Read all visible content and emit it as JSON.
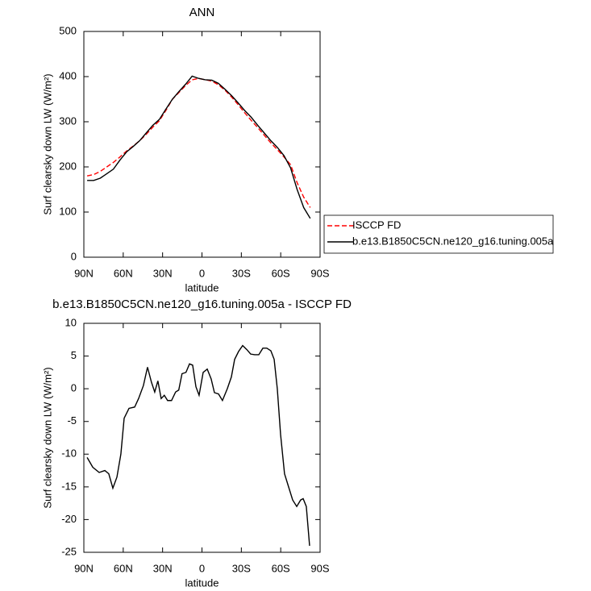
{
  "chart_data": [
    {
      "type": "line",
      "title": "ANN",
      "xlabel": "latitude",
      "ylabel": "Surf clearsky down LW (W/m²)",
      "x": [
        87.5,
        82.5,
        77.5,
        72.5,
        67.5,
        62.5,
        57.5,
        52.5,
        47.5,
        42.5,
        37.5,
        32.5,
        27.5,
        22.5,
        17.5,
        12.5,
        7.5,
        2.5,
        -2.5,
        -7.5,
        -12.5,
        -17.5,
        -22.5,
        -27.5,
        -32.5,
        -37.5,
        -42.5,
        -47.5,
        -52.5,
        -57.5,
        -62.5,
        -67.5,
        -72.5,
        -77.5,
        -82.5
      ],
      "series": [
        {
          "name": "ISCCP FD",
          "color": "#ff0000",
          "dash": true,
          "values": [
            180,
            183,
            190,
            200,
            210,
            222,
            235,
            246,
            258,
            272,
            288,
            302,
            325,
            350,
            365,
            380,
            393,
            396,
            393,
            390,
            382,
            370,
            355,
            338,
            320,
            303,
            287,
            270,
            253,
            238,
            222,
            205,
            165,
            133,
            110
          ]
        },
        {
          "name": "b.e13.B1850C5CN.ne120_g16.tuning.005a",
          "color": "#000000",
          "dash": false,
          "values": [
            170,
            170,
            175,
            185,
            195,
            215,
            233,
            245,
            258,
            275,
            292,
            305,
            328,
            350,
            367,
            383,
            401,
            396,
            393,
            392,
            385,
            372,
            358,
            342,
            325,
            310,
            292,
            275,
            258,
            243,
            225,
            198,
            150,
            110,
            86
          ]
        }
      ],
      "xlim": [
        90,
        -90
      ],
      "xticks": [
        {
          "value": 90,
          "label": "90N"
        },
        {
          "value": 60,
          "label": "60N"
        },
        {
          "value": 30,
          "label": "30N"
        },
        0,
        {
          "value": -30,
          "label": "30S"
        },
        {
          "value": -60,
          "label": "60S"
        },
        {
          "value": -90,
          "label": "90S"
        }
      ],
      "ylim": [
        0,
        500
      ],
      "yticks": [
        0,
        100,
        200,
        300,
        400,
        500
      ],
      "legend": "right"
    },
    {
      "type": "line",
      "title": "b.e13.B1850C5CN.ne120_g16.tuning.005a - ISCCP FD",
      "xlabel": "latitude",
      "ylabel": "Surf clearsky down LW (W/m²)",
      "x": [
        87.5,
        83.2,
        78.3,
        74.0,
        71.0,
        67.9,
        64.8,
        61.8,
        59.3,
        55.6,
        51.3,
        48.3,
        44.6,
        41.5,
        38.5,
        36.0,
        33.6,
        31.1,
        28.7,
        26.2,
        23.2,
        20.1,
        17.7,
        15.2,
        12.2,
        9.5,
        7.1,
        4.6,
        2.2,
        -0.9,
        -4.0,
        -7.0,
        -9.5,
        -12.6,
        -15.6,
        -19.3,
        -22.4,
        -24.9,
        -27.9,
        -31.0,
        -34.1,
        -37.1,
        -40.2,
        -43.3,
        -46.4,
        -49.4,
        -52.5,
        -55.0,
        -57.4,
        -59.9,
        -62.9,
        -66.0,
        -69.1,
        -72.2,
        -75.2,
        -77.1,
        -79.5,
        -82.0
      ],
      "series": [
        {
          "color": "#000000",
          "dash": false,
          "values": [
            -10.5,
            -12,
            -12.8,
            -12.5,
            -13,
            -15.2,
            -13.5,
            -10,
            -4.5,
            -3,
            -2.8,
            -1.5,
            0.5,
            3.3,
            1,
            -0.5,
            1.2,
            -1.5,
            -1,
            -1.8,
            -1.8,
            -0.5,
            -0.2,
            2.3,
            2.5,
            3.8,
            3.6,
            0.3,
            -1,
            2.5,
            3,
            1.5,
            -0.6,
            -0.8,
            -1.8,
            0,
            1.8,
            4.5,
            5.7,
            6.6,
            6,
            5.3,
            5.2,
            5.2,
            6.2,
            6.2,
            5.8,
            4.5,
            0,
            -7,
            -13,
            -15,
            -17,
            -18,
            -17,
            -16.8,
            -18,
            -24
          ]
        }
      ],
      "xlim": [
        90,
        -90
      ],
      "xticks": [
        {
          "value": 90,
          "label": "90N"
        },
        {
          "value": 60,
          "label": "60N"
        },
        {
          "value": 30,
          "label": "30N"
        },
        0,
        {
          "value": -30,
          "label": "30S"
        },
        {
          "value": -60,
          "label": "60S"
        },
        {
          "value": -90,
          "label": "90S"
        }
      ],
      "ylim": [
        -25,
        10
      ],
      "yticks": [
        -25,
        -20,
        -15,
        -10,
        -5,
        0,
        5,
        10
      ]
    }
  ]
}
